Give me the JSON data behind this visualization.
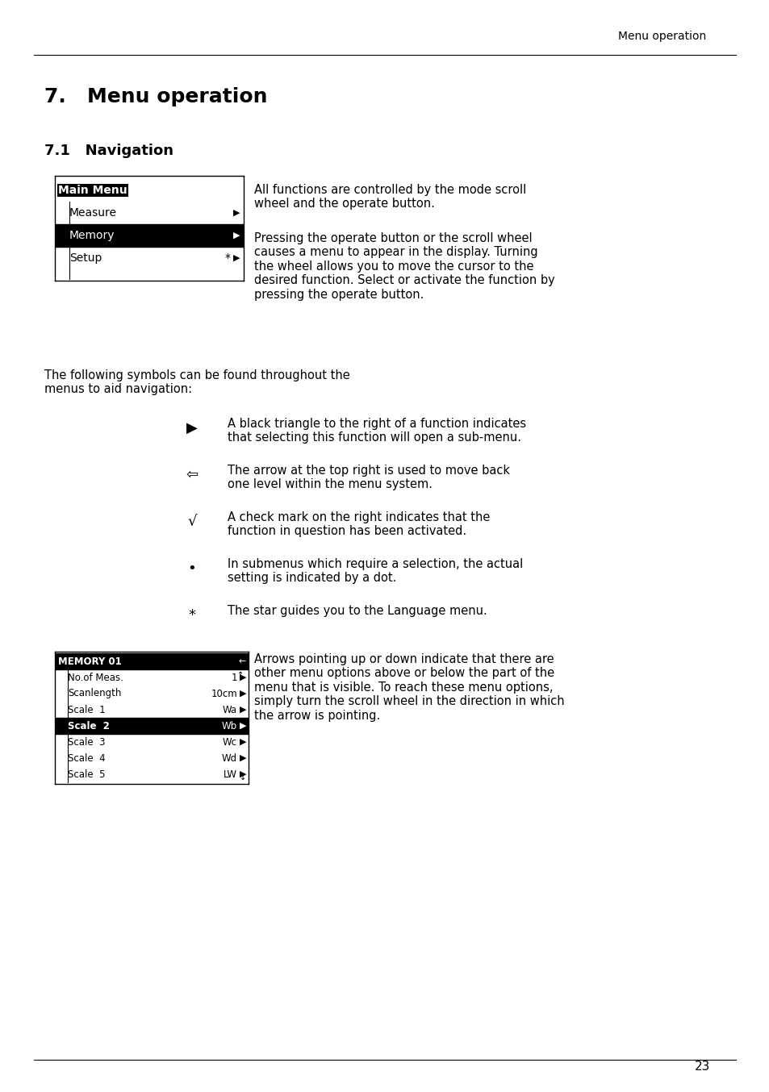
{
  "page_title": "Menu operation",
  "section_title": "7.   Menu operation",
  "subsection_title": "7.1   Navigation",
  "page_number": "23",
  "menu_box1": {
    "items": [
      {
        "text": "Main Menu",
        "highlight_full": false,
        "highlight_text": true,
        "indent": 0,
        "arrow": false,
        "star": false
      },
      {
        "text": "Measure",
        "highlight_full": false,
        "highlight_text": false,
        "indent": 1,
        "arrow": true,
        "star": false
      },
      {
        "text": "Memory",
        "highlight_full": true,
        "highlight_text": false,
        "indent": 1,
        "arrow": true,
        "star": false
      },
      {
        "text": "Setup",
        "highlight_full": false,
        "highlight_text": false,
        "indent": 1,
        "arrow": true,
        "star": true
      }
    ]
  },
  "menu_box2": {
    "items": [
      {
        "text": "MEMORY 01",
        "highlight": true,
        "col2": "",
        "arrow": "←",
        "up": false,
        "down": false
      },
      {
        "text": "No.of Meas.",
        "highlight": false,
        "col2": "1",
        "arrow": "▶",
        "up": true,
        "down": false
      },
      {
        "text": "Scanlength",
        "highlight": false,
        "col2": "10cm",
        "arrow": "▶",
        "up": false,
        "down": false
      },
      {
        "text": "Scale  1",
        "highlight": false,
        "col2": "Wa",
        "arrow": "▶",
        "up": false,
        "down": false
      },
      {
        "text": "Scale  2",
        "highlight": true,
        "col2": "Wb",
        "arrow": "▶",
        "up": false,
        "down": false
      },
      {
        "text": "Scale  3",
        "highlight": false,
        "col2": "Wc",
        "arrow": "▶",
        "up": false,
        "down": false
      },
      {
        "text": "Scale  4",
        "highlight": false,
        "col2": "Wd",
        "arrow": "▶",
        "up": false,
        "down": false
      },
      {
        "text": "Scale  5",
        "highlight": false,
        "col2": "LW",
        "arrow": "▶",
        "up": false,
        "down": true
      }
    ]
  },
  "paragraph1": "All functions are controlled by the mode scroll\nwheel and the operate button.",
  "paragraph2": "Pressing the operate button or the scroll wheel\ncauses a menu to appear in the display. Turning\nthe wheel allows you to move the cursor to the\ndesired function. Select or activate the function by\npressing the operate button.",
  "paragraph3": "The following symbols can be found throughout the\nmenus to aid navigation:",
  "symbols": [
    {
      "sym": "▶",
      "desc": "A black triangle to the right of a function indicates\nthat selecting this function will open a sub-menu."
    },
    {
      "sym": "⇦",
      "desc": "The arrow at the top right is used to move back\none level within the menu system."
    },
    {
      "sym": "√",
      "desc": "A check mark on the right indicates that the\nfunction in question has been activated."
    },
    {
      "sym": "•",
      "desc": "In submenus which require a selection, the actual\nsetting is indicated by a dot."
    },
    {
      "sym": "*",
      "desc": "The star guides you to the Language menu."
    }
  ],
  "paragraph4": "Arrows pointing up or down indicate that there are\nother menu options above or below the part of the\nmenu that is visible. To reach these menu options,\nsimply turn the scroll wheel in the direction in which\nthe arrow is pointing.",
  "bg_color": "#ffffff",
  "text_color": "#000000"
}
